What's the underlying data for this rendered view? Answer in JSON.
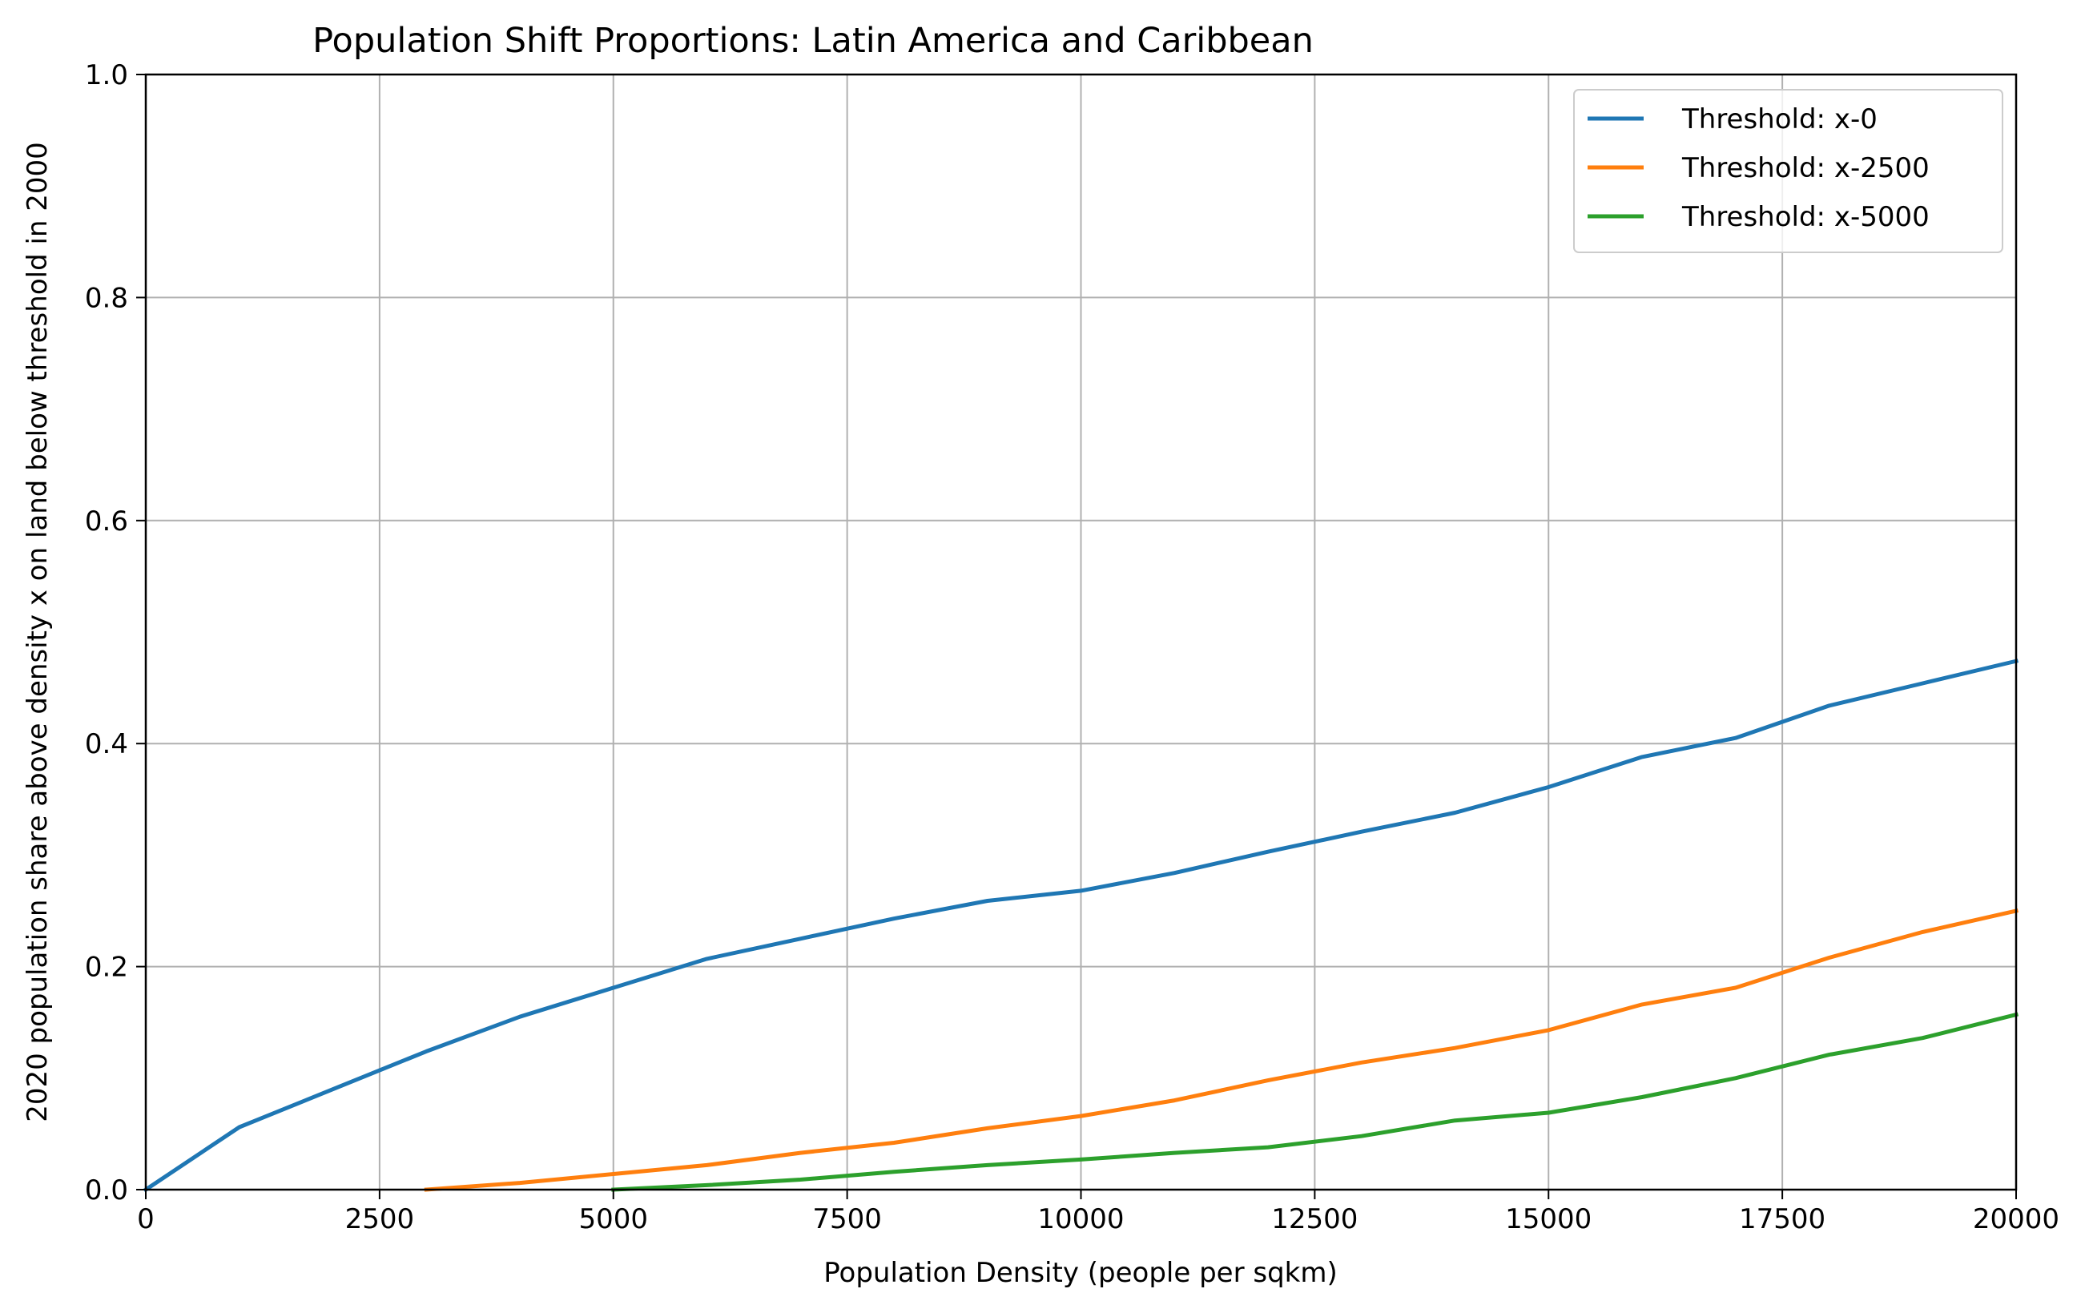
{
  "chart_data": {
    "type": "line",
    "title": "Population Shift Proportions: Latin America and Caribbean",
    "xlabel": "Population Density (people per sqkm)",
    "ylabel": "2020 population share above density x on land below threshold in 2000",
    "xlim": [
      0,
      20000
    ],
    "ylim": [
      0,
      1.0
    ],
    "xticks": [
      0,
      2500,
      5000,
      7500,
      10000,
      12500,
      15000,
      17500,
      20000
    ],
    "xtick_labels": [
      "0",
      "2500",
      "5000",
      "7500",
      "10000",
      "12500",
      "15000",
      "17500",
      "20000"
    ],
    "yticks": [
      0,
      0.2,
      0.4,
      0.6,
      0.8,
      1.0
    ],
    "ytick_labels": [
      "0.0",
      "0.2",
      "0.4",
      "0.6",
      "0.8",
      "1.0"
    ],
    "grid": true,
    "legend_position": "top-right",
    "series": [
      {
        "name": "Threshold: x-0",
        "color": "#1f77b4",
        "x": [
          0,
          1000,
          2000,
          3000,
          4000,
          5000,
          6000,
          7000,
          8000,
          9000,
          10000,
          11000,
          12000,
          13000,
          14000,
          15000,
          16000,
          17000,
          18000,
          19000,
          20000
        ],
        "y": [
          0.0,
          0.056,
          0.09,
          0.124,
          0.155,
          0.181,
          0.207,
          0.225,
          0.243,
          0.259,
          0.268,
          0.284,
          0.303,
          0.321,
          0.338,
          0.361,
          0.388,
          0.405,
          0.434,
          0.454,
          0.474
        ]
      },
      {
        "name": "Threshold: x-2500",
        "color": "#ff7f0e",
        "x": [
          3000,
          4000,
          5000,
          6000,
          7000,
          8000,
          9000,
          10000,
          11000,
          12000,
          13000,
          14000,
          15000,
          16000,
          17000,
          18000,
          19000,
          20000
        ],
        "y": [
          0.0,
          0.006,
          0.014,
          0.022,
          0.033,
          0.042,
          0.055,
          0.066,
          0.08,
          0.098,
          0.114,
          0.127,
          0.143,
          0.166,
          0.181,
          0.208,
          0.231,
          0.25
        ]
      },
      {
        "name": "Threshold: x-5000",
        "color": "#2ca02c",
        "x": [
          5000,
          6000,
          7000,
          8000,
          9000,
          10000,
          11000,
          12000,
          13000,
          14000,
          15000,
          16000,
          17000,
          18000,
          19000,
          20000
        ],
        "y": [
          0.0,
          0.004,
          0.009,
          0.016,
          0.022,
          0.027,
          0.033,
          0.038,
          0.048,
          0.062,
          0.069,
          0.083,
          0.1,
          0.121,
          0.136,
          0.157
        ]
      }
    ]
  }
}
